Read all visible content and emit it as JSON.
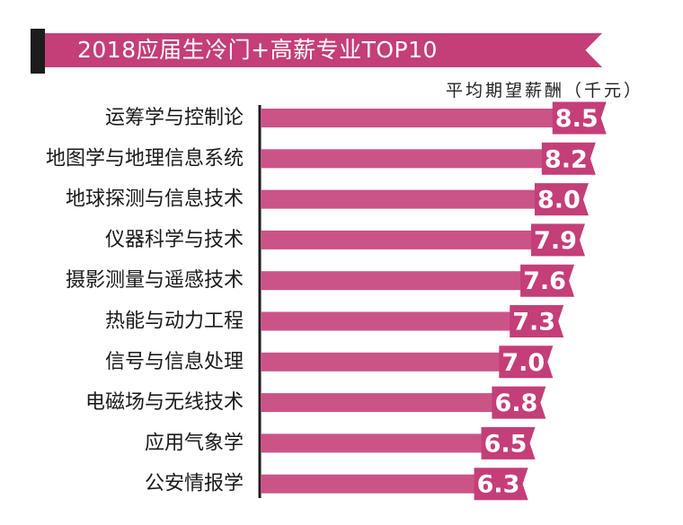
{
  "title": "2018应届生冷门+高薪专业TOP10",
  "unit_label": "平均期望薪酬（千元）",
  "colors": {
    "bar": "#cb5487",
    "badge": "#c43e78",
    "banner": "#c43e78",
    "axis": "#1c1c1c"
  },
  "chart_data": {
    "type": "bar",
    "orientation": "horizontal",
    "title": "2018应届生冷门+高薪专业TOP10",
    "xlabel": "平均期望薪酬（千元）",
    "ylabel": "",
    "xlim": [
      0,
      9.1
    ],
    "categories": [
      "运筹学与控制论",
      "地图学与地理信息系统",
      "地球探测与信息技术",
      "仪器科学与技术",
      "摄影测量与遥感技术",
      "热能与动力工程",
      "信号与信息处理",
      "电磁场与无线技术",
      "应用气象学",
      "公安情报学"
    ],
    "values": [
      8.5,
      8.2,
      8.0,
      7.9,
      7.6,
      7.3,
      7.0,
      6.8,
      6.5,
      6.3
    ],
    "value_labels": [
      "8.5",
      "8.2",
      "8.0",
      "7.9",
      "7.6",
      "7.3",
      "7.0",
      "6.8",
      "6.5",
      "6.3"
    ]
  }
}
